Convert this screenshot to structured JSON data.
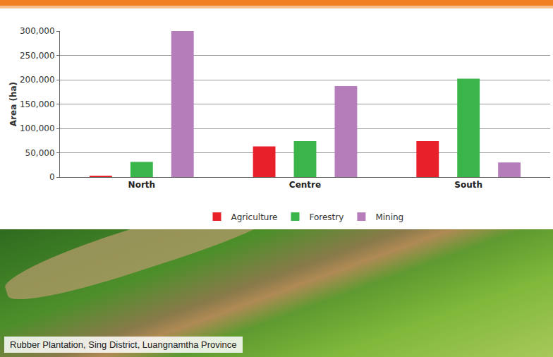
{
  "chart_data": {
    "type": "bar",
    "categories": [
      "North",
      "Centre",
      "South"
    ],
    "series": [
      {
        "name": "Agriculture",
        "color": "#e8202a",
        "values": [
          3000,
          63000,
          74000
        ]
      },
      {
        "name": "Forestry",
        "color": "#3ab54a",
        "values": [
          31000,
          74000,
          202000
        ]
      },
      {
        "name": "Mining",
        "color": "#b57ebb",
        "values": [
          300000,
          187000,
          30000
        ]
      }
    ],
    "y_label": "Area (ha)",
    "ylim": [
      0,
      300000
    ],
    "yticks": [
      0,
      {
        "value": 50000,
        "label": "50,000"
      },
      {
        "value": 100000,
        "label": "100,000"
      },
      {
        "value": 150000,
        "label": "150,000"
      },
      {
        "value": 200000,
        "label": "200,000"
      },
      {
        "value": 250000,
        "label": "250,000"
      },
      {
        "value": 300000,
        "label": "300,000"
      }
    ],
    "grid": true,
    "legend": "bottom"
  },
  "photo_caption": "Rubber Plantation, Sing District, Luangnamtha Province"
}
